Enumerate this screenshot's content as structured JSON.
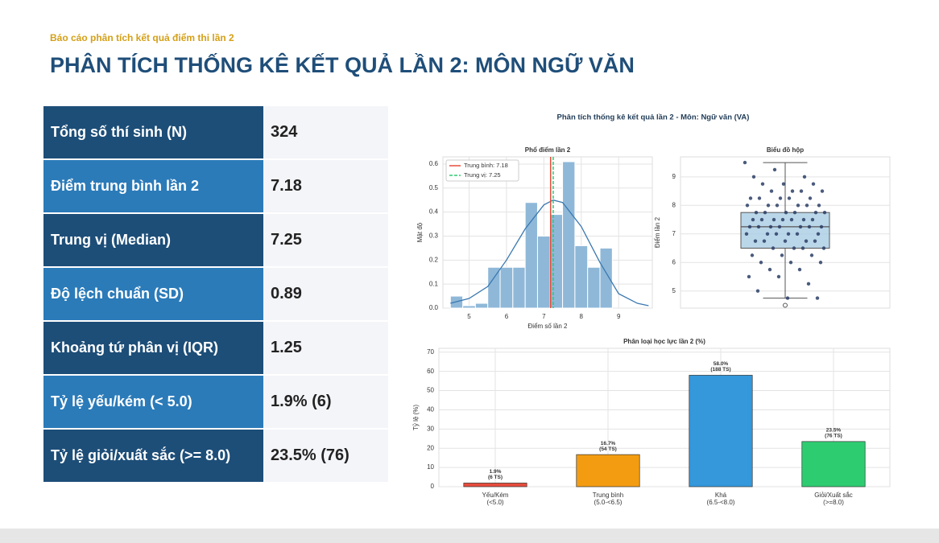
{
  "header": {
    "kicker": "Báo cáo phân tích kết quả điểm thi lần 2",
    "title": "PHÂN TÍCH THỐNG KÊ KẾT QUẢ LẦN 2: MÔN NGỮ VĂN"
  },
  "table": {
    "rows": [
      [
        "Tổng số thí sinh (N)",
        324
      ],
      [
        "Điểm trung bình lần 2",
        7.18
      ],
      [
        "Trung vị (Median)",
        7.25
      ],
      [
        "Độ lệch chuẩn (SD)",
        0.89
      ],
      [
        "Khoảng tứ phân vị (IQR)",
        1.25
      ],
      [
        "Tỷ lệ yếu/kém (< 5.0)",
        "1.9% (6)"
      ],
      [
        "Tỷ lệ giỏi/xuất sắc (>= 8.0)",
        "23.5% (76)"
      ]
    ]
  },
  "figure": {
    "title": "Phân tích thống kê kết quả lần 2 - Môn: Ngữ văn (VA)"
  },
  "chart_data": [
    {
      "type": "histogram",
      "title": "Phổ điểm lần 2",
      "xlabel": "Điểm số lần 2",
      "ylabel": "Mật độ",
      "color": "#8fb8d8",
      "bins": [
        4.5,
        4.83,
        5.17,
        5.5,
        5.83,
        6.17,
        6.5,
        6.83,
        7.17,
        7.5,
        7.83,
        8.17,
        8.5,
        8.83
      ],
      "values": [
        0.05,
        0.01,
        0.02,
        0.17,
        0.17,
        0.17,
        0.44,
        0.3,
        0.39,
        0.61,
        0.26,
        0.17,
        0.25
      ],
      "kde": {
        "color": "#3a78b0",
        "x": [
          4.5,
          5,
          5.5,
          6,
          6.5,
          7,
          7.25,
          7.5,
          8,
          8.5,
          9,
          9.5,
          9.8
        ],
        "y": [
          0.02,
          0.04,
          0.09,
          0.2,
          0.33,
          0.43,
          0.45,
          0.44,
          0.34,
          0.19,
          0.06,
          0.02,
          0.01
        ]
      },
      "vlines": [
        {
          "name": "Trung bình: 7.18",
          "value": 7.18,
          "color": "#e74c3c",
          "dash": false
        },
        {
          "name": "Trung vị: 7.25",
          "value": 7.25,
          "color": "#2ecc71",
          "dash": true
        }
      ],
      "xlim": [
        4.3,
        9.9
      ],
      "xticks": [
        5,
        6,
        7,
        8,
        9
      ],
      "ylim": [
        0,
        0.63
      ],
      "yticks": [
        {
          "value": 0,
          "label": "0.0"
        },
        0.1,
        0.2,
        0.3,
        0.4,
        0.5,
        0.6
      ],
      "grid": true,
      "legend": "top-left"
    },
    {
      "type": "box",
      "title": "Biểu đồ hộp",
      "ylabel": "Điểm lần 2",
      "color": "#a9cce3",
      "point_color": "#2c3e66",
      "q1": 6.5,
      "median": 7.25,
      "q3": 7.75,
      "whisker_low": 4.75,
      "whisker_high": 9.5,
      "outliers": [
        4.5
      ],
      "points": [
        9.5,
        9.25,
        9,
        9,
        8.75,
        8.75,
        8.75,
        8.5,
        8.5,
        8.5,
        8.5,
        8.25,
        8.25,
        8.25,
        8.25,
        8.25,
        8,
        8,
        8,
        8,
        8,
        8,
        7.75,
        7.75,
        7.75,
        7.75,
        7.75,
        7.75,
        7.5,
        7.5,
        7.5,
        7.5,
        7.5,
        7.5,
        7.5,
        7.25,
        7.25,
        7.25,
        7.25,
        7.25,
        7.25,
        7.25,
        7,
        7,
        7,
        7,
        7,
        7,
        6.75,
        6.75,
        6.75,
        6.75,
        6.75,
        6.5,
        6.5,
        6.5,
        6.5,
        6.25,
        6.25,
        6.25,
        6,
        6,
        6,
        5.75,
        5.75,
        5.5,
        5.5,
        5.25,
        5,
        4.75,
        4.75
      ],
      "ylim": [
        4.4,
        9.7
      ],
      "yticks": [
        5,
        6,
        7,
        8,
        9
      ],
      "grid": true
    },
    {
      "type": "bar",
      "title": "Phân loại học lực lần 2 (%)",
      "ylabel": "Tỷ lệ (%)",
      "categories": [
        "Yếu/Kém",
        "Trung bình",
        "Khá",
        "Giỏi/Xuất sắc"
      ],
      "subcategories": [
        "(<5.0)",
        "(5.0-<6.5)",
        "(6.5-<8.0)",
        "(>=8.0)"
      ],
      "values": [
        1.9,
        16.7,
        58.0,
        23.5
      ],
      "value_labels": [
        "1.9%",
        "16.7%",
        "58.0%",
        "23.5%"
      ],
      "count_labels": [
        "(6 TS)",
        "(54 TS)",
        "(188 TS)",
        "(76 TS)"
      ],
      "colors": [
        "#e74c3c",
        "#f39c12",
        "#3498db",
        "#2ecc71"
      ],
      "ylim": [
        0,
        72
      ],
      "yticks": [
        0,
        10,
        20,
        30,
        40,
        50,
        60,
        70
      ],
      "grid": true
    }
  ]
}
